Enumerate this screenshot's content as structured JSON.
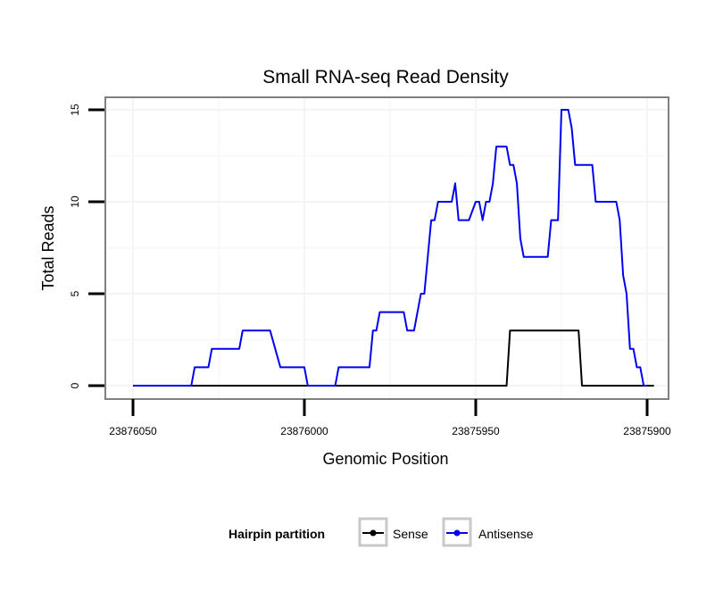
{
  "chart_data": {
    "type": "line",
    "title": "Small RNA-seq Read Density",
    "xlabel": "Genomic Position",
    "ylabel": "Total Reads",
    "x_reversed": true,
    "xlim": [
      23876050,
      23875900
    ],
    "ylim": [
      0,
      15
    ],
    "x_ticks": [
      23876050,
      23876000,
      23875950,
      23875900
    ],
    "x_tick_labels": [
      "23876050",
      "23876000",
      "23875950",
      "23875900"
    ],
    "y_ticks": [
      0,
      5,
      10,
      15
    ],
    "y_tick_labels": [
      "0",
      "5",
      "10",
      "15"
    ],
    "grid": true,
    "legend": {
      "title": "Hairpin partition",
      "position": "bottom"
    },
    "series": [
      {
        "name": "Sense",
        "color": "#000000",
        "points": [
          [
            23876050,
            0
          ],
          [
            23875941,
            0
          ],
          [
            23875940,
            3
          ],
          [
            23875920,
            3
          ],
          [
            23875919,
            0
          ],
          [
            23875898,
            0
          ]
        ]
      },
      {
        "name": "Antisense",
        "color": "#0000ee",
        "points": [
          [
            23876050,
            0
          ],
          [
            23876033,
            0
          ],
          [
            23876032,
            1
          ],
          [
            23876028,
            1
          ],
          [
            23876027,
            2
          ],
          [
            23876019,
            2
          ],
          [
            23876018,
            3
          ],
          [
            23876010,
            3
          ],
          [
            23876007,
            1
          ],
          [
            23876000,
            1
          ],
          [
            23875999,
            0
          ],
          [
            23875991,
            0
          ],
          [
            23875990,
            1
          ],
          [
            23875981,
            1
          ],
          [
            23875980,
            3
          ],
          [
            23875979,
            3
          ],
          [
            23875978,
            4
          ],
          [
            23875971,
            4
          ],
          [
            23875970,
            3
          ],
          [
            23875968,
            3
          ],
          [
            23875966,
            5
          ],
          [
            23875965,
            5
          ],
          [
            23875964,
            7
          ],
          [
            23875963,
            9
          ],
          [
            23875962,
            9
          ],
          [
            23875961,
            10
          ],
          [
            23875957,
            10
          ],
          [
            23875956,
            11
          ],
          [
            23875955,
            9
          ],
          [
            23875952,
            9
          ],
          [
            23875950,
            10
          ],
          [
            23875949,
            10
          ],
          [
            23875948,
            9
          ],
          [
            23875947,
            10
          ],
          [
            23875946,
            10
          ],
          [
            23875945,
            11
          ],
          [
            23875944,
            13
          ],
          [
            23875941,
            13
          ],
          [
            23875940,
            12
          ],
          [
            23875939,
            12
          ],
          [
            23875938,
            11
          ],
          [
            23875937,
            8
          ],
          [
            23875936,
            7
          ],
          [
            23875930,
            7
          ],
          [
            23875929,
            7
          ],
          [
            23875928,
            9
          ],
          [
            23875926,
            9
          ],
          [
            23875925,
            15
          ],
          [
            23875923,
            15
          ],
          [
            23875922,
            14
          ],
          [
            23875921,
            12
          ],
          [
            23875917,
            12
          ],
          [
            23875916,
            12
          ],
          [
            23875915,
            10
          ],
          [
            23875909,
            10
          ],
          [
            23875908,
            9
          ],
          [
            23875907,
            6
          ],
          [
            23875906,
            5
          ],
          [
            23875905,
            2
          ],
          [
            23875904,
            2
          ],
          [
            23875903,
            1
          ],
          [
            23875902,
            1
          ],
          [
            23875901,
            0
          ],
          [
            23875900,
            0
          ]
        ]
      }
    ]
  }
}
